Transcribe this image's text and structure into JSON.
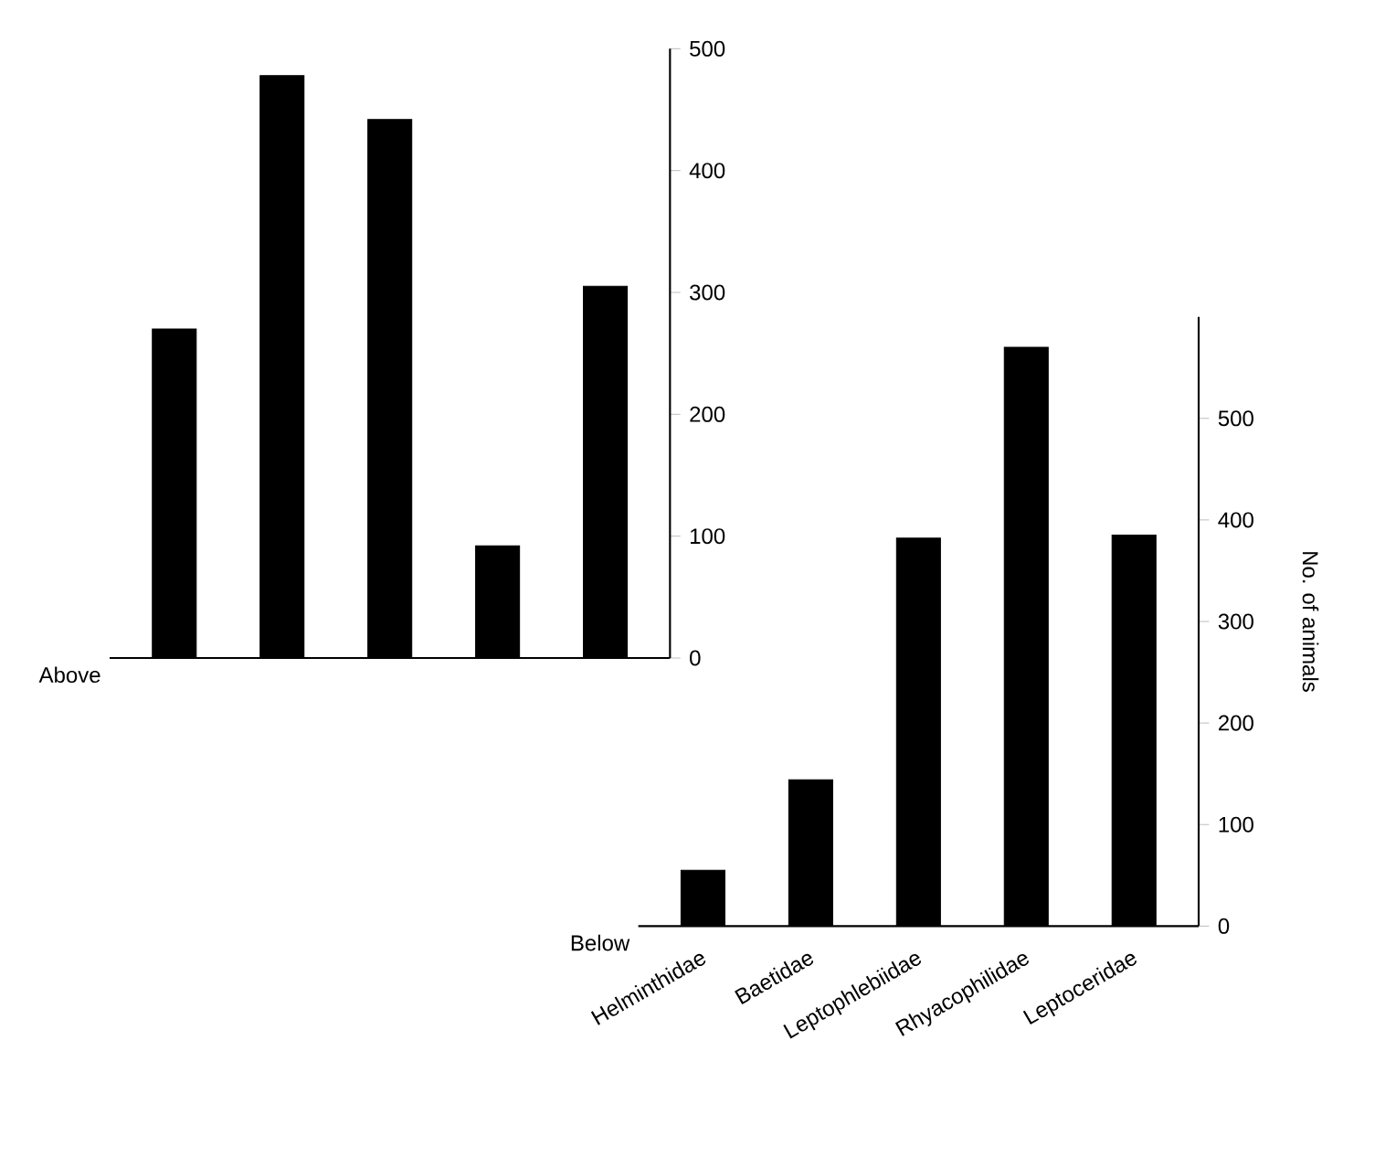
{
  "chart_data": [
    {
      "type": "bar",
      "categories": [
        null,
        null,
        null,
        null,
        null
      ],
      "series": [
        {
          "name": "Above",
          "color": "#000000",
          "values": [
            270,
            478,
            442,
            92,
            305
          ]
        }
      ],
      "ylim": [
        0,
        500
      ],
      "yticks": [
        0,
        100,
        200,
        300,
        400,
        500
      ],
      "tick_labels": "y"
    },
    {
      "type": "bar",
      "categories": [
        "Helminthidae",
        "Baetidae",
        "Leptophlebiidae",
        "Rhyacophilidae",
        "Leptoceridae"
      ],
      "series": [
        {
          "name": "Below",
          "color": "#000000",
          "values": [
            55,
            144,
            382,
            570,
            385
          ]
        }
      ],
      "ylim": [
        0,
        600
      ],
      "yticks": [
        0,
        100,
        200,
        300,
        400,
        500
      ],
      "ylabel": "No. of animals"
    }
  ]
}
